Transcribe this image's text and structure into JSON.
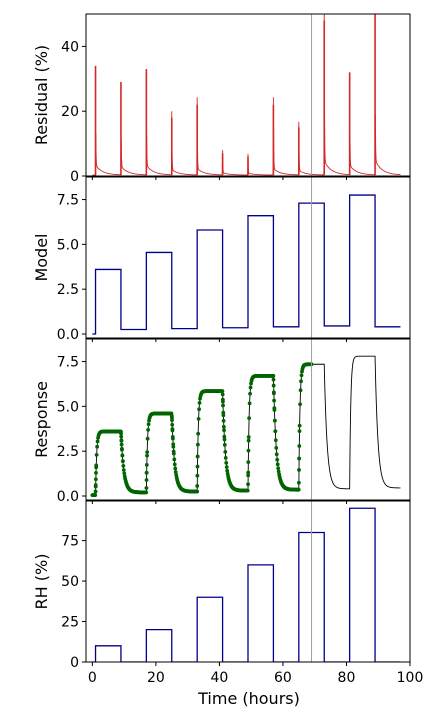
{
  "chart_data": {
    "type": "line",
    "xlabel": "Time (hours)",
    "xlim": [
      -2,
      100
    ],
    "xticks": [
      0,
      20,
      40,
      60,
      80,
      100
    ],
    "marker_time": 69,
    "colors": {
      "residual": "#d62728",
      "model": "#00008b",
      "response_points": "#006400",
      "response_line": "#000000",
      "rh": "#00008b",
      "marker": "#a0a0a0"
    },
    "panels": [
      {
        "ylabel": "Residual (%)",
        "ylim": [
          0,
          50
        ],
        "yticks": [
          0,
          20,
          40
        ],
        "spikes": [
          {
            "x": 1,
            "y": 34
          },
          {
            "x": 9,
            "y": 29
          },
          {
            "x": 17,
            "y": 33
          },
          {
            "x": 25,
            "y": 18
          },
          {
            "x": 33,
            "y": 22
          },
          {
            "x": 41,
            "y": 7
          },
          {
            "x": 49,
            "y": 6
          },
          {
            "x": 57,
            "y": 22
          },
          {
            "x": 65,
            "y": 15
          },
          {
            "x": 73,
            "y": 48
          },
          {
            "x": 81,
            "y": 32
          },
          {
            "x": 89,
            "y": 50
          }
        ]
      },
      {
        "ylabel": "Model",
        "ylim": [
          0,
          8.2
        ],
        "yticks": [
          0.0,
          2.5,
          5.0,
          7.5
        ],
        "ytick_labels": [
          "0.0",
          "2.5",
          "5.0",
          "7.5"
        ],
        "steps": [
          {
            "x": 0,
            "y": 0
          },
          {
            "x": 1,
            "y": 3.6
          },
          {
            "x": 9,
            "y": 0.25
          },
          {
            "x": 17,
            "y": 4.55
          },
          {
            "x": 25,
            "y": 0.3
          },
          {
            "x": 33,
            "y": 5.8
          },
          {
            "x": 41,
            "y": 0.35
          },
          {
            "x": 49,
            "y": 6.6
          },
          {
            "x": 57,
            "y": 0.4
          },
          {
            "x": 65,
            "y": 7.3
          },
          {
            "x": 73,
            "y": 0.45
          },
          {
            "x": 81,
            "y": 7.75
          },
          {
            "x": 89,
            "y": 0.4
          },
          {
            "x": 97,
            "y": 0.4
          }
        ]
      },
      {
        "ylabel": "Response",
        "ylim": [
          0,
          8.2
        ],
        "yticks": [
          0.0,
          2.5,
          5.0,
          7.5
        ],
        "ytick_labels": [
          "0.0",
          "2.5",
          "5.0",
          "7.5"
        ],
        "baseline": 0.05,
        "cycles": [
          {
            "on": 1,
            "off": 9,
            "high": 3.6,
            "low": 0.2
          },
          {
            "on": 17,
            "off": 25,
            "high": 4.6,
            "low": 0.25
          },
          {
            "on": 33,
            "off": 41,
            "high": 5.85,
            "low": 0.3
          },
          {
            "on": 49,
            "off": 57,
            "high": 6.7,
            "low": 0.35
          },
          {
            "on": 65,
            "off": 73,
            "high": 7.35,
            "low": 0.4
          },
          {
            "on": 81,
            "off": 89,
            "high": 7.8,
            "low": 0.45
          }
        ],
        "measured_until": 69
      },
      {
        "ylabel": "RH (%)",
        "ylim": [
          0,
          97
        ],
        "yticks": [
          0,
          25,
          50,
          75
        ],
        "pulses": [
          {
            "on": 1,
            "off": 9,
            "value": 10
          },
          {
            "on": 17,
            "off": 25,
            "value": 20
          },
          {
            "on": 33,
            "off": 41,
            "value": 40
          },
          {
            "on": 49,
            "off": 57,
            "value": 60
          },
          {
            "on": 65,
            "off": 73,
            "value": 80
          },
          {
            "on": 81,
            "off": 89,
            "value": 95
          }
        ]
      }
    ]
  }
}
